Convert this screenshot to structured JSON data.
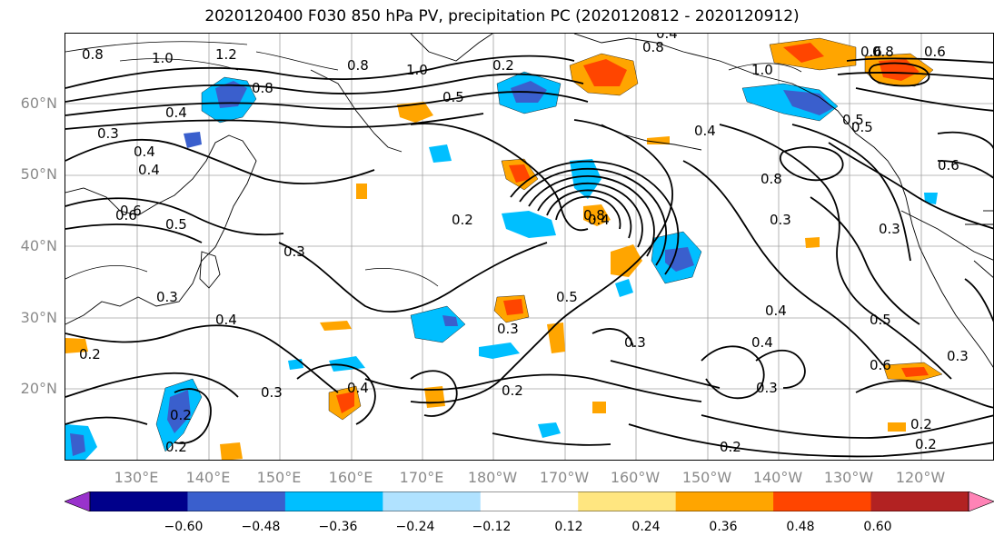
{
  "title": "2020120400 F030 850 hPa PV, precipitation PC (2020120812 - 2020120912)",
  "lat_labels": [
    "60°N",
    "50°N",
    "40°N",
    "30°N",
    "20°N"
  ],
  "lon_labels": [
    "130°E",
    "140°E",
    "150°E",
    "160°E",
    "170°E",
    "180°W",
    "170°W",
    "160°W",
    "150°W",
    "140°W",
    "130°W",
    "120°W"
  ],
  "colorbar": {
    "ticks": [
      "−0.60",
      "−0.48",
      "−0.36",
      "−0.24",
      "−0.12",
      "0.12",
      "0.24",
      "0.36",
      "0.48",
      "0.60"
    ],
    "colors": [
      "#9932cc",
      "#00008b",
      "#3a5fcd",
      "#00bfff",
      "#b0e2ff",
      "#ffffff",
      "#ffe680",
      "#ffa500",
      "#ff4500",
      "#b22222",
      "#ff83b6"
    ]
  },
  "contour_labels": [
    "0.8",
    "1.0",
    "1.2",
    "0.8",
    "0.4",
    "0.8",
    "1.0",
    "0.2",
    "0.4",
    "0.8",
    "1.0",
    "0.8",
    "0.6",
    "0.3",
    "0.4",
    "0.4",
    "0.6",
    "0.5",
    "0.2",
    "0.5",
    "0.3",
    "0.4",
    "0.4",
    "0.5",
    "0.3",
    "0.4",
    "0.2",
    "0.4",
    "0.3",
    "0.2",
    "0.3",
    "0.2",
    "0.6",
    "0.5",
    "0.4",
    "0.3",
    "0.6",
    "0.2",
    "0.2",
    "0.5",
    "0.3",
    "0.6",
    "0.2",
    "0.4",
    "0.3",
    "0.5",
    "0.3",
    "0.8",
    "0.2",
    "0.8",
    "0.6",
    "0.3"
  ]
}
